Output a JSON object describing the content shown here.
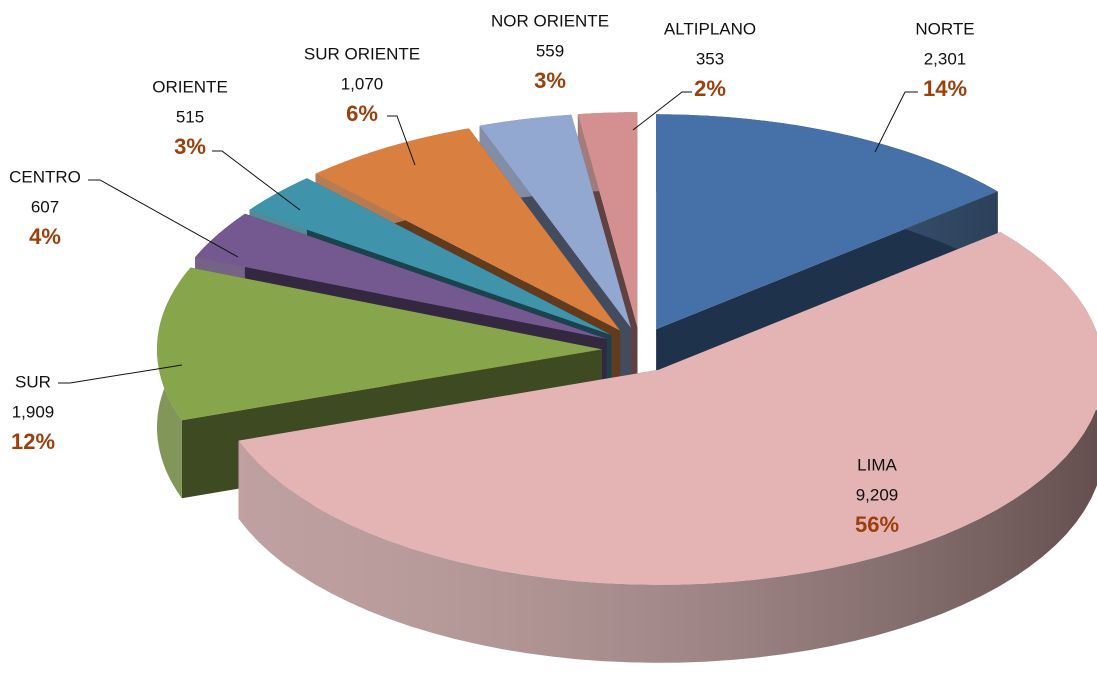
{
  "chart_data": {
    "type": "pie3d",
    "categories": [
      "NORTE",
      "LIMA",
      "SUR",
      "CENTRO",
      "ORIENTE",
      "SUR ORIENTE",
      "NOR ORIENTE",
      "ALTIPLANO"
    ],
    "values": [
      2301,
      9209,
      1909,
      607,
      515,
      1070,
      559,
      353
    ],
    "value_labels": [
      "2,301",
      "9,209",
      "1,909",
      "607",
      "515",
      "1,070",
      "559",
      "353"
    ],
    "percent_labels": [
      "14%",
      "56%",
      "12%",
      "4%",
      "3%",
      "6%",
      "3%",
      "2%"
    ],
    "colors": [
      "#4570a8",
      "#e4b4b4",
      "#87a54b",
      "#73598f",
      "#3f93aa",
      "#d98040",
      "#93a8d1",
      "#d49090"
    ]
  }
}
